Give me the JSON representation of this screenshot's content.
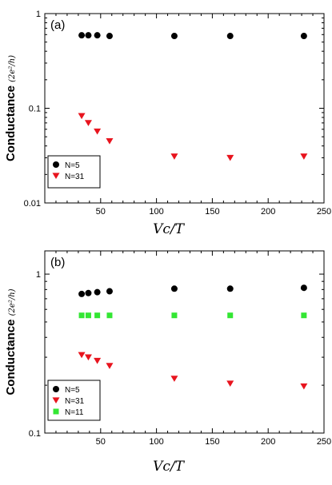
{
  "chart_data": [
    {
      "type": "scatter",
      "panel_label": "(a)",
      "ylabel": "Conductance",
      "ylabel_unit": "(2e²/h)",
      "xlabel": "Vc/T",
      "x_scale": "linear",
      "y_scale": "log",
      "xlim": [
        0,
        250
      ],
      "ylim": [
        0.01,
        1
      ],
      "x_ticks": [
        "50",
        "100",
        "150",
        "200",
        "250"
      ],
      "y_ticks": [
        "0.01",
        "0.1",
        "1"
      ],
      "legend_position": "bottom-left",
      "grid": false,
      "series": [
        {
          "name": "N=5",
          "marker": "circle",
          "color": "#000000",
          "x": [
            33,
            39,
            47,
            58,
            116,
            166,
            232
          ],
          "y": [
            0.59,
            0.59,
            0.59,
            0.58,
            0.58,
            0.58,
            0.58
          ]
        },
        {
          "name": "N=31",
          "marker": "triangle-down",
          "color": "#e8141e",
          "x": [
            33,
            39,
            47,
            58,
            116,
            166,
            232
          ],
          "y": [
            0.083,
            0.07,
            0.057,
            0.045,
            0.031,
            0.03,
            0.031
          ]
        }
      ]
    },
    {
      "type": "scatter",
      "panel_label": "(b)",
      "ylabel": "Conductance",
      "ylabel_unit": "(2e²/h)",
      "xlabel": "Vc/T",
      "x_scale": "linear",
      "y_scale": "log",
      "xlim": [
        0,
        250
      ],
      "ylim": [
        0.1,
        1.4
      ],
      "x_ticks": [
        "50",
        "100",
        "150",
        "200",
        "250"
      ],
      "y_ticks": [
        "0.1",
        "1"
      ],
      "legend_position": "bottom-left",
      "grid": false,
      "series": [
        {
          "name": "N=5",
          "marker": "circle",
          "color": "#000000",
          "x": [
            33,
            39,
            47,
            58,
            116,
            166,
            232
          ],
          "y": [
            0.75,
            0.76,
            0.77,
            0.78,
            0.81,
            0.81,
            0.82
          ]
        },
        {
          "name": "N=31",
          "marker": "triangle-down",
          "color": "#e8141e",
          "x": [
            33,
            39,
            47,
            58,
            116,
            166,
            232
          ],
          "y": [
            0.31,
            0.3,
            0.285,
            0.265,
            0.22,
            0.205,
            0.197
          ]
        },
        {
          "name": "N=11",
          "marker": "square",
          "color": "#33e633",
          "x": [
            33,
            39,
            47,
            58,
            116,
            166,
            232
          ],
          "y": [
            0.55,
            0.55,
            0.55,
            0.55,
            0.55,
            0.55,
            0.55
          ]
        }
      ]
    }
  ]
}
